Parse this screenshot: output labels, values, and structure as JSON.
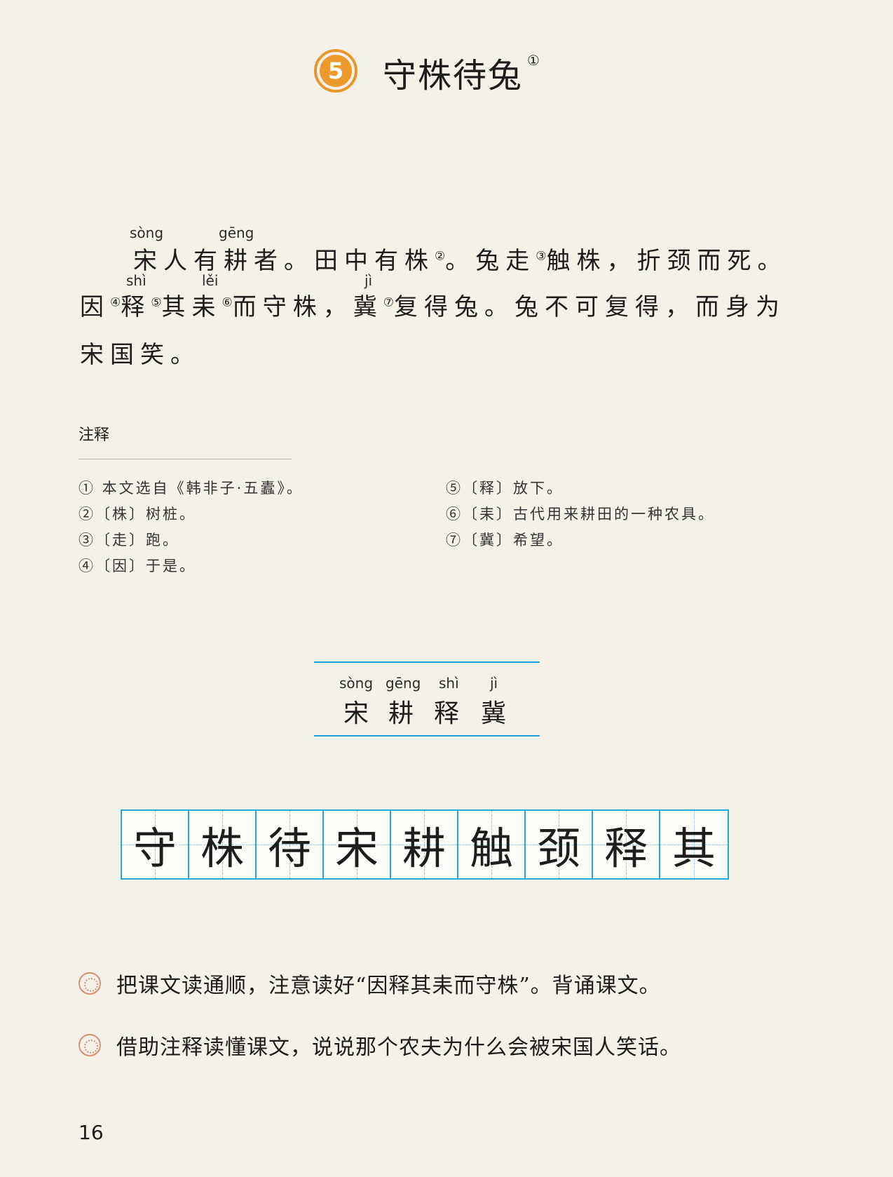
{
  "lesson": {
    "number": "5",
    "title": "守株待兔",
    "title_note": "①"
  },
  "text": {
    "line1": {
      "p1": "宋人有耕者。田中有株",
      "n1": "②",
      "p2": "。兔走",
      "n2": "③",
      "p3": "触株，折颈而死。"
    },
    "line2": {
      "p1": "因",
      "n1": "④",
      "p2": "释",
      "n2": "⑤",
      "p3": "其耒",
      "n3": "⑥",
      "p4": "而守株，冀",
      "n4": "⑦",
      "p5": "复得兔。兔不可复得，而身为"
    },
    "line3": "宋国笑。",
    "pinyin": {
      "song": "sòng",
      "geng": "gēng",
      "shi": "shì",
      "lei": "lěi",
      "ji": "jì"
    }
  },
  "notes": {
    "title": "注释",
    "items": [
      "① 本文选自《韩非子·五蠹》。",
      "②〔株〕树桩。",
      "③〔走〕跑。",
      "④〔因〕于是。",
      "⑤〔释〕放下。",
      "⑥〔耒〕古代用来耕田的一种农具。",
      "⑦〔冀〕希望。"
    ]
  },
  "read_chars": [
    {
      "char": "宋",
      "pinyin": "sòng"
    },
    {
      "char": "耕",
      "pinyin": "gēng"
    },
    {
      "char": "释",
      "pinyin": "shì"
    },
    {
      "char": "冀",
      "pinyin": "jì"
    }
  ],
  "write_chars": [
    "守",
    "株",
    "待",
    "宋",
    "耕",
    "触",
    "颈",
    "释",
    "其"
  ],
  "exercises": [
    "把课文读通顺，注意读好“因释其耒而守株”。背诵课文。",
    "借助注释读懂课文，说说那个农夫为什么会被宋国人笑话。"
  ],
  "page_number": "16",
  "colors": {
    "background": "#f6f1e8",
    "badge": "#ec9a2e",
    "grid": "#2aa7d9",
    "exercise_icon": "#d98f78"
  }
}
